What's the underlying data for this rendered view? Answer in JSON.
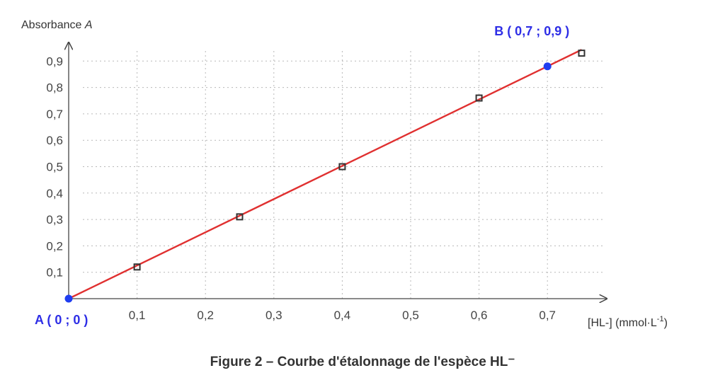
{
  "caption": "Figure 2 – Courbe d'étalonnage de l'espèce HL⁻",
  "chart_data": {
    "type": "scatter",
    "title": "",
    "ylabel_prefix": "Absorbance ",
    "ylabel_symbol": "A",
    "xlabel_main": "[HL-] (mmol·L",
    "xlabel_exp": "-1",
    "xlabel_close": ")",
    "xlim": [
      0,
      0.78
    ],
    "ylim": [
      0,
      0.95
    ],
    "xticks": [
      0.1,
      0.2,
      0.3,
      0.4,
      0.5,
      0.6,
      0.7
    ],
    "xtick_labels": [
      "0,1",
      "0,2",
      "0,3",
      "0,4",
      "0,5",
      "0,6",
      "0,7"
    ],
    "yticks": [
      0.1,
      0.2,
      0.3,
      0.4,
      0.5,
      0.6,
      0.7,
      0.8,
      0.9
    ],
    "ytick_labels": [
      "0,1",
      "0,2",
      "0,3",
      "0,4",
      "0,5",
      "0,6",
      "0,7",
      "0,8",
      "0,9"
    ],
    "grid": true,
    "series": [
      {
        "marker": "square",
        "x": [
          0.1,
          0.25,
          0.4,
          0.6,
          0.75
        ],
        "y": [
          0.12,
          0.31,
          0.5,
          0.76,
          0.93
        ]
      }
    ],
    "fit_line": {
      "x": [
        0,
        0.75
      ],
      "y": [
        0,
        0.943
      ]
    },
    "points": [
      {
        "label": "A ( 0 ; 0 )",
        "x": 0,
        "y": 0
      },
      {
        "label": "B ( 0,7 ; 0,9 )",
        "x": 0.7,
        "y": 0.88
      }
    ],
    "colors": {
      "line": "#e03030",
      "point": "#1f3df0",
      "marker": "#333333",
      "grid": "#b8b8b8",
      "axis": "#444444"
    }
  }
}
